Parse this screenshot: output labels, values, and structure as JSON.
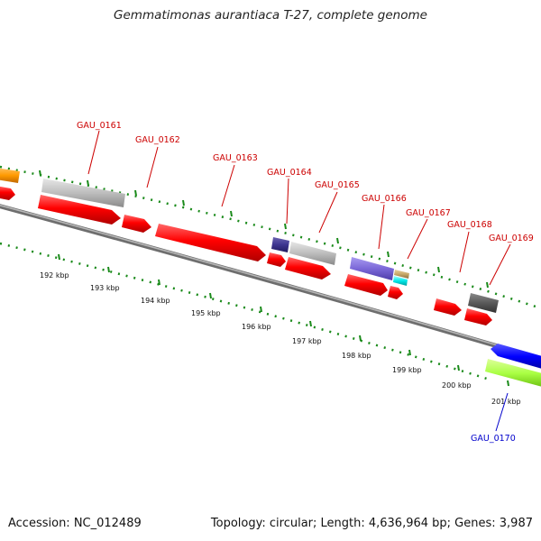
{
  "title": "Gemmatimonas aurantiaca T-27, complete genome",
  "footer": {
    "accession": "Accession: NC_012489",
    "summary": "Topology: circular; Length: 4,636,964 bp; Genes: 3,987"
  },
  "colors": {
    "backbone": "#8c8c8c",
    "tick": "#1a8a1a",
    "label_forward": "#cc0000",
    "label_reverse": "#0000cc",
    "cds": "#ff0000"
  },
  "scale_ticks": [
    "192 kbp",
    "193 kbp",
    "194 kbp",
    "195 kbp",
    "196 kbp",
    "197 kbp",
    "198 kbp",
    "199 kbp",
    "200 kbp",
    "201 kbp"
  ],
  "gene_labels": [
    {
      "text": "GAU_0161",
      "strand": "forward"
    },
    {
      "text": "GAU_0162",
      "strand": "forward"
    },
    {
      "text": "GAU_0163",
      "strand": "forward"
    },
    {
      "text": "GAU_0164",
      "strand": "forward"
    },
    {
      "text": "GAU_0165",
      "strand": "forward"
    },
    {
      "text": "GAU_0166",
      "strand": "forward"
    },
    {
      "text": "GAU_0167",
      "strand": "forward"
    },
    {
      "text": "GAU_0168",
      "strand": "forward"
    },
    {
      "text": "GAU_0169",
      "strand": "forward"
    },
    {
      "text": "GAU_0170",
      "strand": "reverse"
    }
  ]
}
